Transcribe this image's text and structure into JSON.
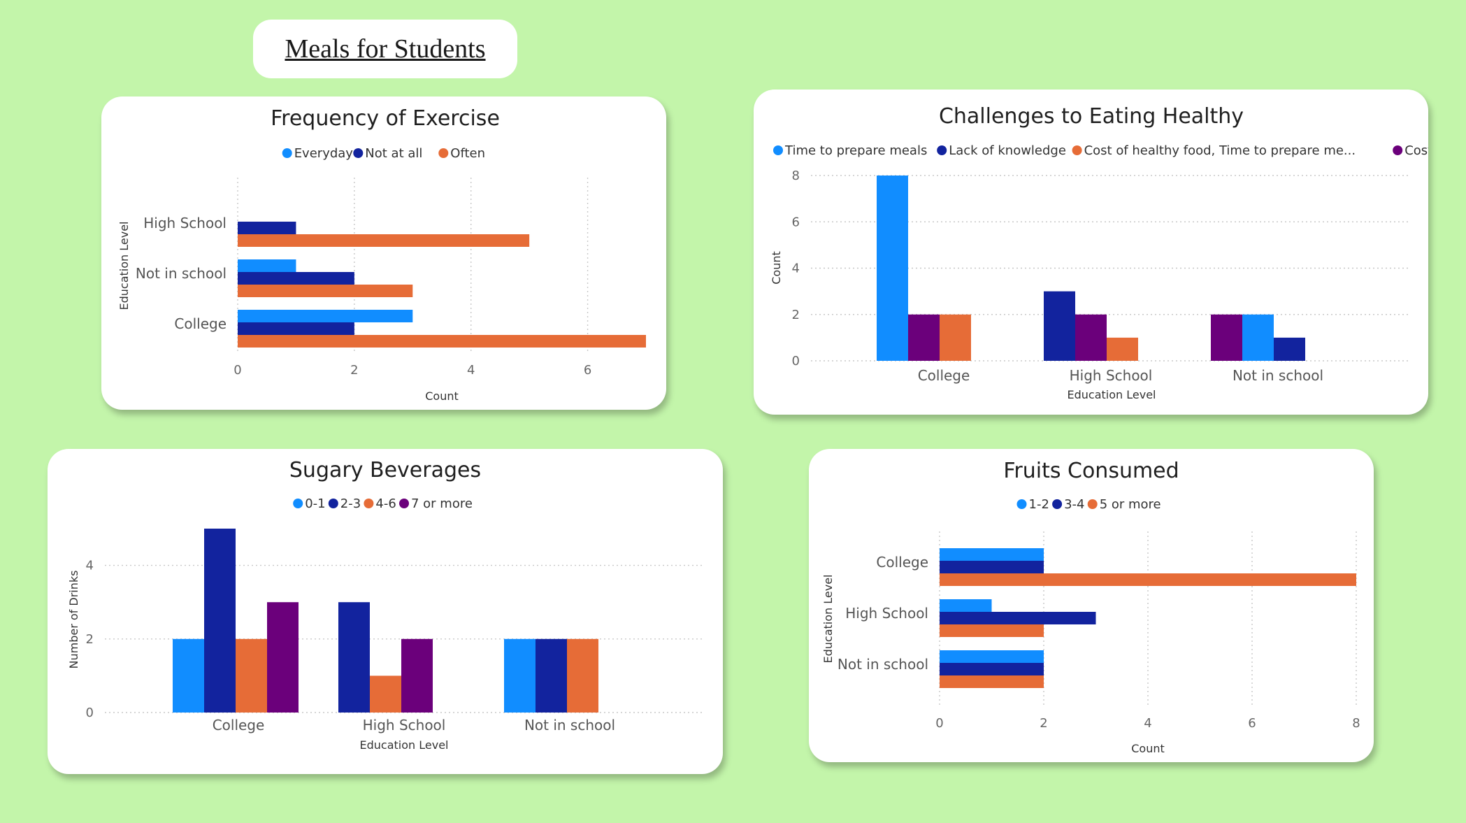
{
  "page": {
    "title": "Meals for Students"
  },
  "colors": {
    "Everyday": "#118dff",
    "Not at all": "#12239e",
    "Often": "#e66c37",
    "Time to prepare meals": "#118dff",
    "Lack of knowledge": "#12239e",
    "Cost of healthy food, Time to prepare me...": "#e66c37",
    "Cost of healthy food": "#6b007b",
    "0-1": "#118dff",
    "2-3": "#12239e",
    "4-6": "#e66c37",
    "7 or more": "#6b007b",
    "1-2": "#118dff",
    "3-4": "#12239e",
    "5 or more": "#e66c37"
  },
  "chart_data": [
    {
      "id": "exercise",
      "type": "bar",
      "orientation": "horizontal",
      "title": "Frequency of Exercise",
      "xlabel": "Count",
      "ylabel": "Education Level",
      "categories": [
        "High School",
        "Not in school",
        "College"
      ],
      "series": [
        {
          "name": "Everyday",
          "values": [
            0,
            1,
            3
          ]
        },
        {
          "name": "Not at all",
          "values": [
            1,
            2,
            2
          ]
        },
        {
          "name": "Often",
          "values": [
            5,
            3,
            7
          ]
        }
      ],
      "xlim": [
        0,
        7
      ],
      "ticks": [
        0,
        2,
        4,
        6
      ],
      "legend_position": "top-center",
      "grid": true
    },
    {
      "id": "challenges",
      "type": "bar",
      "orientation": "vertical",
      "title": "Challenges to Eating Healthy",
      "xlabel": "Education Level",
      "ylabel": "Count",
      "categories": [
        "College",
        "High School",
        "Not in school"
      ],
      "legend": [
        "Time to prepare meals",
        "Lack of knowledge",
        "Cost of healthy food, Time to prepare me...",
        "Cost of healthy food"
      ],
      "groups": [
        [
          {
            "series": "Time to prepare meals",
            "value": 8
          },
          {
            "series": "Cost of healthy food",
            "value": 2
          },
          {
            "series": "Cost of healthy food, Time to prepare me...",
            "value": 2
          }
        ],
        [
          {
            "series": "Lack of knowledge",
            "value": 3
          },
          {
            "series": "Cost of healthy food",
            "value": 2
          },
          {
            "series": "Cost of healthy food, Time to prepare me...",
            "value": 1
          }
        ],
        [
          {
            "series": "Cost of healthy food",
            "value": 2
          },
          {
            "series": "Time to prepare meals",
            "value": 2
          },
          {
            "series": "Lack of knowledge",
            "value": 1
          }
        ]
      ],
      "ylim": [
        0,
        8
      ],
      "ticks": [
        0,
        2,
        4,
        6,
        8
      ],
      "legend_position": "top-left",
      "grid": true
    },
    {
      "id": "beverages",
      "type": "bar",
      "orientation": "vertical",
      "title": "Sugary Beverages",
      "xlabel": "Education Level",
      "ylabel": "Number of Drinks",
      "categories": [
        "College",
        "High School",
        "Not in school"
      ],
      "legend": [
        "0-1",
        "2-3",
        "4-6",
        "7 or more"
      ],
      "groups": [
        [
          {
            "series": "0-1",
            "value": 2
          },
          {
            "series": "2-3",
            "value": 5
          },
          {
            "series": "4-6",
            "value": 2
          },
          {
            "series": "7 or more",
            "value": 3
          }
        ],
        [
          {
            "series": "2-3",
            "value": 3
          },
          {
            "series": "4-6",
            "value": 1
          },
          {
            "series": "7 or more",
            "value": 2
          }
        ],
        [
          {
            "series": "0-1",
            "value": 2
          },
          {
            "series": "2-3",
            "value": 2
          },
          {
            "series": "4-6",
            "value": 2
          }
        ]
      ],
      "ylim": [
        0,
        5
      ],
      "ticks": [
        0,
        2,
        4
      ],
      "legend_position": "top-center",
      "grid": true
    },
    {
      "id": "fruits",
      "type": "bar",
      "orientation": "horizontal",
      "title": "Fruits Consumed",
      "xlabel": "Count",
      "ylabel": "Education Level",
      "categories": [
        "College",
        "High School",
        "Not in school"
      ],
      "series": [
        {
          "name": "1-2",
          "values": [
            2,
            1,
            2
          ]
        },
        {
          "name": "3-4",
          "values": [
            2,
            3,
            2
          ]
        },
        {
          "name": "5 or more",
          "values": [
            8,
            2,
            2
          ]
        }
      ],
      "xlim": [
        0,
        8
      ],
      "ticks": [
        0,
        2,
        4,
        6,
        8
      ],
      "legend_position": "top-center",
      "grid": true
    }
  ]
}
